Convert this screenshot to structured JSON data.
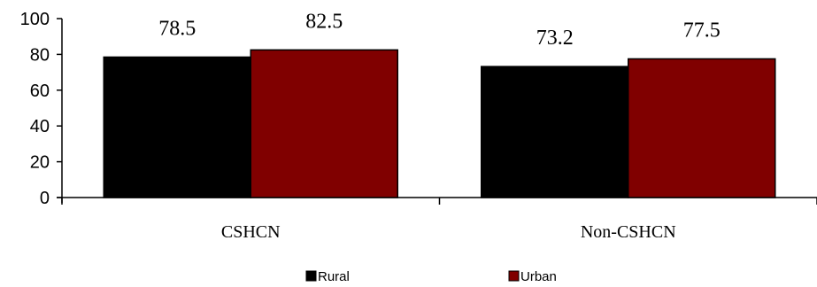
{
  "chart_data": {
    "type": "bar",
    "title": "",
    "xlabel": "",
    "ylabel": "",
    "categories": [
      "CSHCN",
      "Non-CSHCN"
    ],
    "ylim": [
      0,
      100
    ],
    "yticks": [
      "0",
      "20",
      "40",
      "60",
      "80",
      "100"
    ],
    "grid": false,
    "legend_position": "bottom",
    "series": [
      {
        "name": "Rural",
        "values": [
          78.5,
          73.2
        ],
        "color": "#000000"
      },
      {
        "name": "Urban",
        "values": [
          82.5,
          77.5
        ],
        "color": "#800000"
      }
    ],
    "data_labels": [
      [
        "78.5",
        "73.2"
      ],
      [
        "82.5",
        "77.5"
      ]
    ]
  }
}
